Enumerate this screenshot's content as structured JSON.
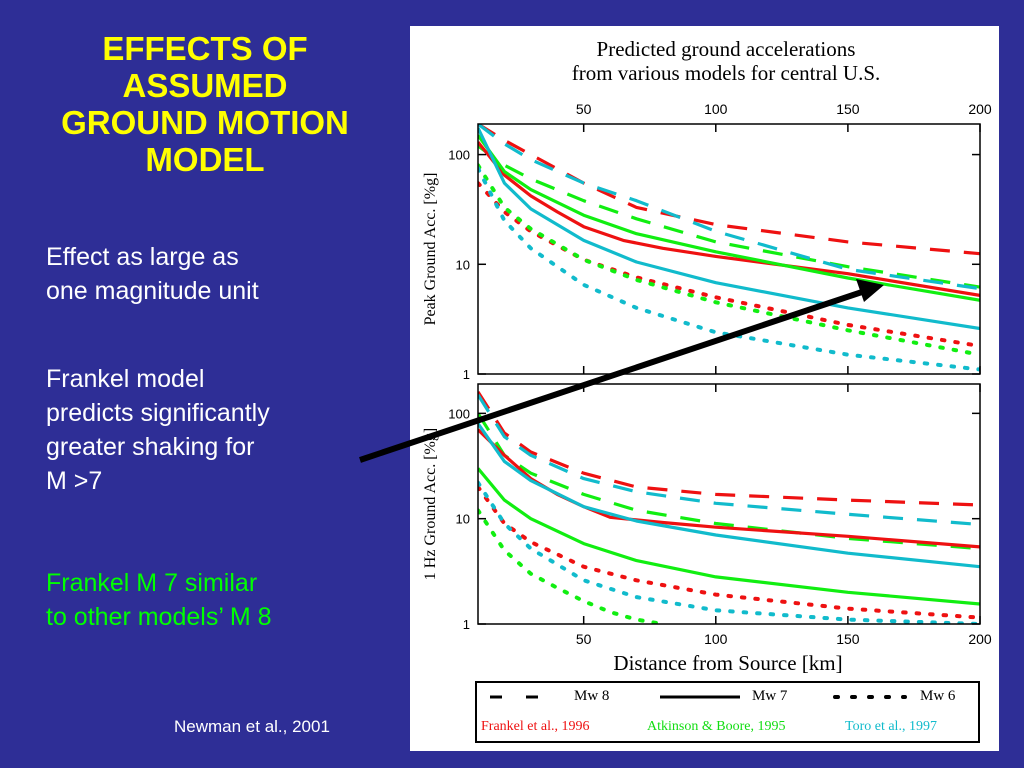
{
  "slide": {
    "title_lines": [
      "EFFECTS OF",
      "ASSUMED",
      "GROUND MOTION",
      "MODEL"
    ],
    "bullets": [
      {
        "lines": [
          "Effect as large as",
          "one magnitude unit"
        ],
        "color": "#ffffff"
      },
      {
        "lines": [
          "Frankel model",
          "predicts significantly",
          "greater shaking for",
          "M >7"
        ],
        "color": "#ffffff"
      },
      {
        "lines": [
          "Frankel M 7 similar",
          "to other models’ M 8"
        ],
        "color": "#00ff00"
      }
    ],
    "citation": "Newman et al., 2001",
    "background_color": "#2e2e96",
    "title_color": "#ffff00"
  },
  "figure": {
    "title_lines": [
      "Predicted ground accelerations",
      "from various models for central U.S."
    ],
    "xlabel": "Distance from Source [km]",
    "legend": {
      "line_styles": [
        {
          "dash": "dashed",
          "label": "Mw 8"
        },
        {
          "dash": "solid",
          "label": "Mw 7"
        },
        {
          "dash": "dotted",
          "label": "Mw 6"
        }
      ],
      "models": [
        {
          "label": "Frankel et al., 1996",
          "color": "#ee1111"
        },
        {
          "label": "Atkinson & Boore, 1995",
          "color": "#11ee11"
        },
        {
          "label": "Toro et al., 1997",
          "color": "#11bbcc"
        }
      ]
    }
  },
  "chart_data": [
    {
      "type": "line",
      "title": "Predicted ground accelerations from various models for central U.S.",
      "ylabel": "Peak Ground Acc. [%g]",
      "xlabel": "",
      "xlim": [
        10,
        200
      ],
      "ylim": [
        1,
        190
      ],
      "yscale": "log",
      "x_ticks": [
        50,
        100,
        150,
        200
      ],
      "y_ticks": [
        1,
        10,
        100
      ],
      "grid": false,
      "series": [
        {
          "name": "Frankel et al., 1996 Mw 8",
          "color": "#ee1111",
          "dash": "dashed",
          "x": [
            10,
            20,
            30,
            50,
            70,
            100,
            150,
            200
          ],
          "y": [
            190,
            135,
            100,
            55,
            33,
            23,
            16,
            12.5
          ]
        },
        {
          "name": "Atkinson & Boore, 1995 Mw 8",
          "color": "#11ee11",
          "dash": "dashed",
          "x": [
            10,
            20,
            30,
            50,
            70,
            100,
            150,
            200
          ],
          "y": [
            120,
            80,
            60,
            38,
            26,
            16,
            9.5,
            6.2
          ]
        },
        {
          "name": "Toro et al., 1997 Mw 8",
          "color": "#11bbcc",
          "dash": "dashed",
          "x": [
            10,
            20,
            30,
            50,
            70,
            100,
            150,
            200
          ],
          "y": [
            190,
            125,
            90,
            55,
            38,
            20,
            9,
            6
          ]
        },
        {
          "name": "Frankel et al., 1996 Mw 7",
          "color": "#ee1111",
          "dash": "solid",
          "x": [
            10,
            20,
            30,
            40,
            50,
            65,
            80,
            100,
            150,
            200
          ],
          "y": [
            130,
            65,
            42,
            30,
            22,
            16.5,
            14,
            11.8,
            8.2,
            5.2
          ]
        },
        {
          "name": "Atkinson & Boore, 1995 Mw 7",
          "color": "#11ee11",
          "dash": "solid",
          "x": [
            10,
            20,
            30,
            50,
            70,
            100,
            150,
            200
          ],
          "y": [
            150,
            70,
            48,
            28,
            19,
            13,
            7.5,
            4.7
          ]
        },
        {
          "name": "Toro et al., 1997 Mw 7",
          "color": "#11bbcc",
          "dash": "solid",
          "x": [
            10,
            20,
            30,
            50,
            70,
            100,
            150,
            200
          ],
          "y": [
            175,
            55,
            32,
            16.5,
            10.5,
            6.8,
            4,
            2.6
          ]
        },
        {
          "name": "Frankel et al., 1996 Mw 6",
          "color": "#ee1111",
          "dash": "dotted",
          "x": [
            10,
            20,
            30,
            50,
            70,
            100,
            150,
            200
          ],
          "y": [
            55,
            30,
            20,
            11,
            7.6,
            5,
            2.8,
            1.8
          ]
        },
        {
          "name": "Atkinson & Boore, 1995 Mw 6",
          "color": "#11ee11",
          "dash": "dotted",
          "x": [
            10,
            20,
            30,
            50,
            70,
            100,
            150,
            200
          ],
          "y": [
            80,
            33,
            21,
            11,
            7.2,
            4.5,
            2.5,
            1.5
          ]
        },
        {
          "name": "Toro et al., 1997 Mw 6",
          "color": "#11bbcc",
          "dash": "dotted",
          "x": [
            10,
            20,
            30,
            50,
            70,
            100,
            150,
            200
          ],
          "y": [
            75,
            25,
            14,
            6.5,
            4,
            2.4,
            1.5,
            1.1
          ]
        }
      ]
    },
    {
      "type": "line",
      "title": "",
      "ylabel": "1 Hz Ground Acc. [%g]",
      "xlabel": "Distance from Source [km]",
      "xlim": [
        10,
        200
      ],
      "ylim": [
        1,
        190
      ],
      "yscale": "log",
      "x_ticks": [
        50,
        100,
        150,
        200
      ],
      "y_ticks": [
        1,
        10,
        100
      ],
      "grid": false,
      "series": [
        {
          "name": "Frankel et al., 1996 Mw 8",
          "color": "#ee1111",
          "dash": "dashed",
          "x": [
            10,
            20,
            30,
            50,
            70,
            100,
            150,
            200
          ],
          "y": [
            160,
            65,
            43,
            27,
            20,
            17,
            15,
            13.5
          ]
        },
        {
          "name": "Atkinson & Boore, 1995 Mw 8",
          "color": "#11ee11",
          "dash": "dashed",
          "x": [
            10,
            20,
            30,
            50,
            70,
            100,
            150,
            200
          ],
          "y": [
            100,
            40,
            27,
            17,
            12,
            9,
            6.5,
            5.2
          ]
        },
        {
          "name": "Toro et al., 1997 Mw 8",
          "color": "#11bbcc",
          "dash": "dashed",
          "x": [
            10,
            20,
            30,
            50,
            70,
            100,
            150,
            200
          ],
          "y": [
            150,
            60,
            40,
            24,
            18,
            14,
            11,
            8.8
          ]
        },
        {
          "name": "Frankel et al., 1996 Mw 7",
          "color": "#ee1111",
          "dash": "solid",
          "x": [
            10,
            20,
            30,
            40,
            50,
            60,
            80,
            100,
            150,
            200
          ],
          "y": [
            70,
            40,
            24,
            17,
            13,
            10.3,
            9.2,
            8.3,
            6.8,
            5.4
          ]
        },
        {
          "name": "Atkinson & Boore, 1995 Mw 7",
          "color": "#11ee11",
          "dash": "solid",
          "x": [
            10,
            20,
            30,
            50,
            70,
            100,
            150,
            200
          ],
          "y": [
            30,
            15,
            10,
            5.8,
            4,
            2.8,
            2,
            1.55
          ]
        },
        {
          "name": "Toro et al., 1997 Mw 7",
          "color": "#11bbcc",
          "dash": "solid",
          "x": [
            10,
            20,
            30,
            50,
            70,
            100,
            150,
            200
          ],
          "y": [
            80,
            35,
            23,
            13,
            9.5,
            7,
            4.7,
            3.5
          ]
        },
        {
          "name": "Frankel et al., 1996 Mw 6",
          "color": "#ee1111",
          "dash": "dotted",
          "x": [
            10,
            20,
            30,
            50,
            70,
            100,
            150,
            200
          ],
          "y": [
            20,
            9,
            6,
            3.5,
            2.6,
            1.9,
            1.4,
            1.15
          ]
        },
        {
          "name": "Atkinson & Boore, 1995 Mw 6",
          "color": "#11ee11",
          "dash": "dotted",
          "x": [
            10,
            20,
            30,
            40,
            50,
            60,
            70,
            80
          ],
          "y": [
            12,
            5,
            3,
            2.2,
            1.65,
            1.3,
            1.1,
            1.0
          ]
        },
        {
          "name": "Toro et al., 1997 Mw 6",
          "color": "#11bbcc",
          "dash": "dotted",
          "x": [
            10,
            20,
            30,
            50,
            70,
            100,
            150,
            200
          ],
          "y": [
            22,
            9,
            5.2,
            2.6,
            1.8,
            1.35,
            1.1,
            1.0
          ]
        }
      ]
    }
  ]
}
